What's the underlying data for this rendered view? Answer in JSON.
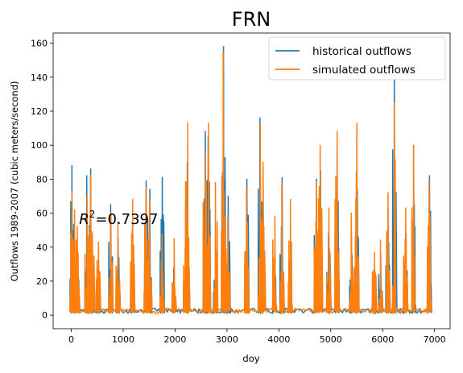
{
  "chart_data": {
    "type": "line",
    "title": "FRN",
    "xlabel": "doy",
    "ylabel": "Outflows 1989-2007 (cubic meters/second)",
    "xlim": [
      -350,
      7300
    ],
    "ylim": [
      -8,
      166
    ],
    "xticks": [
      0,
      1000,
      2000,
      3000,
      4000,
      5000,
      6000,
      7000
    ],
    "yticks": [
      0,
      20,
      40,
      60,
      80,
      100,
      120,
      140,
      160
    ],
    "grid": false,
    "legend_position": "top-right",
    "annotation": {
      "prefix": "R",
      "superscript": "2",
      "value_text": "=0.7397",
      "x": 150,
      "y": 57
    },
    "series": [
      {
        "name": "historical outflows",
        "color": "#1f77b4",
        "peaks": [
          [
            15,
            88
          ],
          [
            60,
            45
          ],
          [
            120,
            35
          ],
          [
            300,
            82
          ],
          [
            370,
            86
          ],
          [
            410,
            30
          ],
          [
            520,
            40
          ],
          [
            760,
            65
          ],
          [
            900,
            45
          ],
          [
            1180,
            50
          ],
          [
            1440,
            79
          ],
          [
            1510,
            74
          ],
          [
            1750,
            81
          ],
          [
            1980,
            28
          ],
          [
            2200,
            28
          ],
          [
            2240,
            90
          ],
          [
            2580,
            108
          ],
          [
            2640,
            105
          ],
          [
            2780,
            40
          ],
          [
            2930,
            158
          ],
          [
            3020,
            70
          ],
          [
            3380,
            80
          ],
          [
            3640,
            116
          ],
          [
            3700,
            85
          ],
          [
            3920,
            40
          ],
          [
            4060,
            81
          ],
          [
            4220,
            44
          ],
          [
            4720,
            80
          ],
          [
            4800,
            85
          ],
          [
            4960,
            48
          ],
          [
            5120,
            98
          ],
          [
            5400,
            50
          ],
          [
            5500,
            110
          ],
          [
            5840,
            24
          ],
          [
            5960,
            36
          ],
          [
            6100,
            63
          ],
          [
            6230,
            140
          ],
          [
            6440,
            45
          ],
          [
            6600,
            100
          ],
          [
            6900,
            82
          ]
        ],
        "baseline": 1
      },
      {
        "name": "simulated outflows",
        "color": "#ff7f0e",
        "peaks": [
          [
            15,
            73
          ],
          [
            60,
            62
          ],
          [
            120,
            52
          ],
          [
            300,
            70
          ],
          [
            370,
            82
          ],
          [
            410,
            48
          ],
          [
            520,
            43
          ],
          [
            760,
            60
          ],
          [
            900,
            55
          ],
          [
            1180,
            68
          ],
          [
            1440,
            75
          ],
          [
            1510,
            68
          ],
          [
            1750,
            48
          ],
          [
            1980,
            45
          ],
          [
            2200,
            65
          ],
          [
            2240,
            113
          ],
          [
            2580,
            95
          ],
          [
            2640,
            113
          ],
          [
            2780,
            78
          ],
          [
            2930,
            155
          ],
          [
            3020,
            58
          ],
          [
            3380,
            75
          ],
          [
            3640,
            113
          ],
          [
            3700,
            90
          ],
          [
            3920,
            58
          ],
          [
            4060,
            78
          ],
          [
            4220,
            68
          ],
          [
            4720,
            78
          ],
          [
            4800,
            100
          ],
          [
            4960,
            63
          ],
          [
            5120,
            108
          ],
          [
            5400,
            60
          ],
          [
            5500,
            113
          ],
          [
            5840,
            37
          ],
          [
            5960,
            44
          ],
          [
            6100,
            72
          ],
          [
            6230,
            125
          ],
          [
            6440,
            63
          ],
          [
            6600,
            100
          ],
          [
            6900,
            80
          ]
        ],
        "baseline": 1
      }
    ]
  }
}
